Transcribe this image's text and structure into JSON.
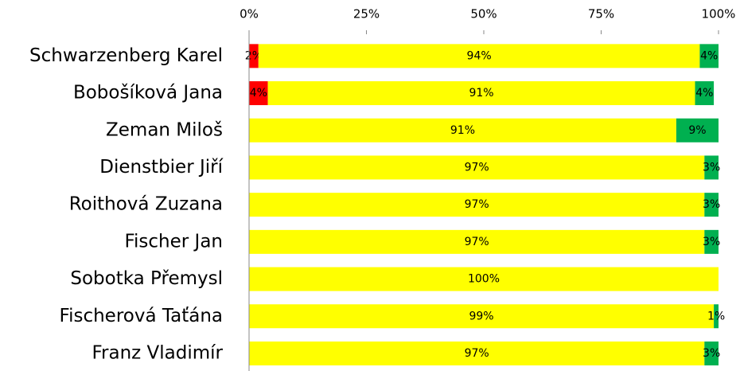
{
  "chart_data": {
    "type": "stacked-bar-horizontal",
    "categories": [
      "Schwarzenberg Karel",
      "Bobošíková Jana",
      "Zeman Miloš",
      "Dienstbier Jiří",
      "Roithová Zuzana",
      "Fischer Jan",
      "Sobotka Přemysl",
      "Fischerová Taťána",
      "Franz Vladimír"
    ],
    "series": [
      {
        "color": "#ff0000",
        "values": [
          2,
          4,
          0,
          0,
          0,
          0,
          0,
          0,
          0
        ],
        "value_labels": [
          "2%",
          "4%",
          null,
          null,
          null,
          null,
          null,
          null,
          null
        ]
      },
      {
        "color": "#ffff00",
        "values": [
          94,
          91,
          91,
          97,
          97,
          97,
          100,
          99,
          97
        ],
        "value_labels": [
          "94%",
          "91%",
          "91%",
          "97%",
          "97%",
          "97%",
          "100%",
          "99%",
          "97%"
        ]
      },
      {
        "color": "#00b050",
        "values": [
          4,
          4,
          9,
          3,
          3,
          3,
          0,
          1,
          3
        ],
        "value_labels": [
          "4%",
          "4%",
          "9%",
          "3%",
          "3%",
          "3%",
          null,
          "1%",
          "3%"
        ]
      }
    ],
    "xlim": [
      0,
      100
    ],
    "xticks": [
      {
        "value": 0,
        "label": "0%"
      },
      {
        "value": 25,
        "label": "25%"
      },
      {
        "value": 50,
        "label": "50%"
      },
      {
        "value": 75,
        "label": "75%"
      },
      {
        "value": 100,
        "label": "100%"
      }
    ]
  }
}
